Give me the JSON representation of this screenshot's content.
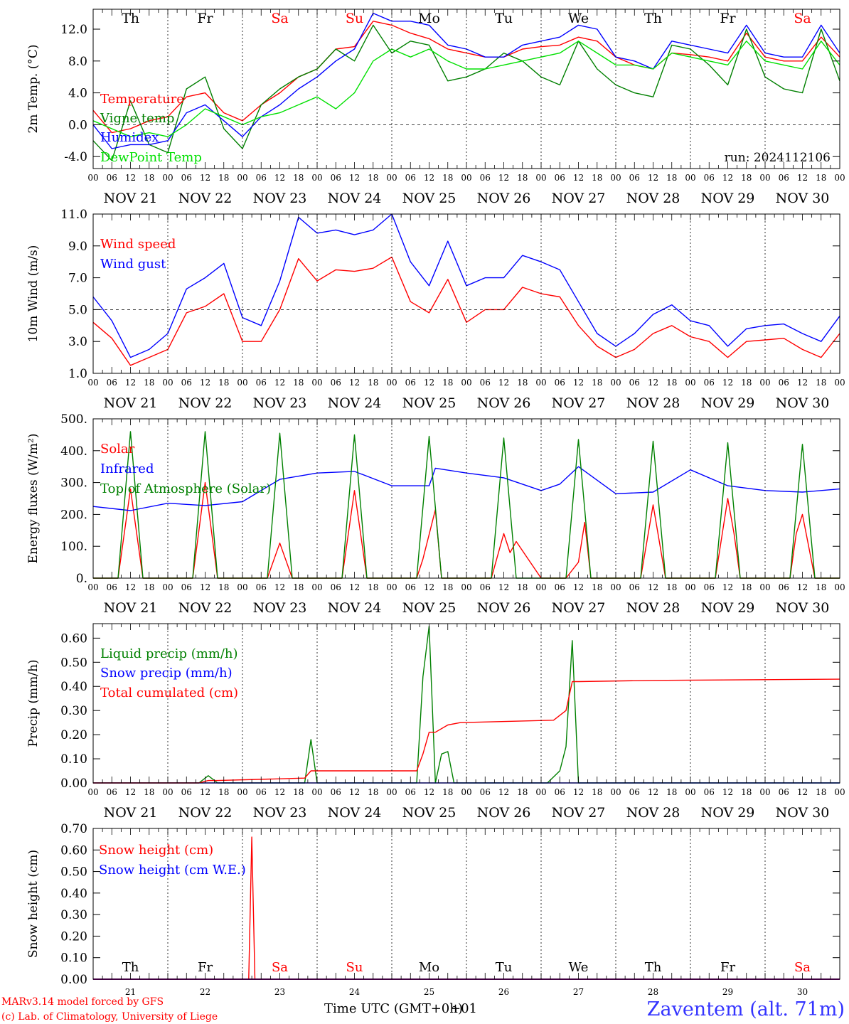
{
  "footer": {
    "model": "MARv3.14 model forced by GFS",
    "credit": "(c) Lab. of Climatology, University of Liege",
    "station": "Zaventem (alt. 71m)",
    "xlabel": "Time UTC (GMT+0h)",
    "xlabel_overlay": "+01"
  },
  "days": [
    "21",
    "22",
    "23",
    "24",
    "25",
    "26",
    "27",
    "28",
    "29",
    "30"
  ],
  "date_labels": [
    "NOV 21",
    "NOV 22",
    "NOV 23",
    "NOV 24",
    "NOV 25",
    "NOV 26",
    "NOV 27",
    "NOV 28",
    "NOV 29",
    "NOV 30"
  ],
  "weekdays": [
    {
      "label": "Th",
      "weekend": false
    },
    {
      "label": "Fr",
      "weekend": false
    },
    {
      "label": "Sa",
      "weekend": true
    },
    {
      "label": "Su",
      "weekend": true
    },
    {
      "label": "Mo",
      "weekend": false
    },
    {
      "label": "Tu",
      "weekend": false
    },
    {
      "label": "We",
      "weekend": false
    },
    {
      "label": "Th",
      "weekend": false
    },
    {
      "label": "Fr",
      "weekend": false
    },
    {
      "label": "Sa",
      "weekend": true
    }
  ],
  "hour_ticks": [
    "00",
    "06",
    "12",
    "18"
  ],
  "colors": {
    "red": "#ff0000",
    "darkgreen": "#008000",
    "blue": "#0000ff",
    "lightgreen": "#00e000",
    "purple": "#800080",
    "weekend": "#ff0000",
    "station": "#3333ff"
  },
  "chart_data": [
    {
      "type": "line",
      "ylabel": "2m Temp. (°C)",
      "ylim": [
        -5.5,
        14.5
      ],
      "yticks": [
        "-4.0",
        "0.0",
        "4.0",
        "8.0",
        "12.0"
      ],
      "ytick_values": [
        -4,
        0,
        4,
        8,
        12
      ],
      "dashed_reference": 0,
      "note": "run: 2024112106",
      "x_unit": "hours since Nov 21 00 UTC",
      "series": [
        {
          "name": "Temperature",
          "color": "#ff0000",
          "x": [
            0,
            6,
            12,
            18,
            24,
            30,
            36,
            42,
            48,
            54,
            60,
            66,
            72,
            78,
            84,
            90,
            96,
            102,
            108,
            114,
            120,
            126,
            132,
            138,
            144,
            150,
            156,
            162,
            168,
            174,
            180,
            186,
            192,
            198,
            204,
            210,
            216,
            222,
            228,
            234,
            240
          ],
          "y": [
            1.8,
            -1.0,
            -0.5,
            0.5,
            1.0,
            3.5,
            4.0,
            1.5,
            0.5,
            2.5,
            4.0,
            6.0,
            7.0,
            9.5,
            9.8,
            13.0,
            12.5,
            11.5,
            10.8,
            9.5,
            9.0,
            8.5,
            8.5,
            9.5,
            9.8,
            10.0,
            11.0,
            10.5,
            8.5,
            7.5,
            7.0,
            9.0,
            8.8,
            8.5,
            8.0,
            11.5,
            8.5,
            8.0,
            8.0,
            11.0,
            8.5
          ]
        },
        {
          "name": "Vigne temp",
          "color": "#008000",
          "x": [
            0,
            6,
            12,
            18,
            24,
            30,
            36,
            42,
            48,
            54,
            60,
            66,
            72,
            78,
            84,
            90,
            96,
            102,
            108,
            114,
            120,
            126,
            132,
            138,
            144,
            150,
            156,
            162,
            168,
            174,
            180,
            186,
            192,
            198,
            204,
            210,
            216,
            222,
            228,
            234,
            240
          ],
          "y": [
            -2.0,
            -4.5,
            3.0,
            -2.5,
            -3.5,
            4.5,
            6.0,
            -0.5,
            -3.0,
            2.5,
            4.5,
            6.0,
            7.0,
            9.5,
            8.0,
            12.5,
            9.0,
            10.5,
            10.0,
            5.5,
            6.0,
            7.0,
            9.0,
            8.0,
            6.0,
            5.0,
            10.5,
            7.0,
            5.0,
            4.0,
            3.5,
            10.0,
            9.5,
            7.5,
            5.0,
            12.0,
            6.0,
            4.5,
            4.0,
            12.0,
            5.5
          ]
        },
        {
          "name": "Humidex",
          "color": "#0000ff",
          "x": [
            0,
            6,
            12,
            18,
            24,
            30,
            36,
            42,
            48,
            54,
            60,
            66,
            72,
            78,
            84,
            90,
            96,
            102,
            108,
            114,
            120,
            126,
            132,
            138,
            144,
            150,
            156,
            162,
            168,
            174,
            180,
            186,
            192,
            198,
            204,
            210,
            216,
            222,
            228,
            234,
            240
          ],
          "y": [
            0.0,
            -3.0,
            -2.5,
            -2.5,
            -2.0,
            1.5,
            2.5,
            0.5,
            -1.5,
            1.0,
            2.5,
            4.5,
            6.0,
            8.0,
            9.5,
            14.0,
            13.0,
            13.0,
            12.5,
            10.0,
            9.5,
            8.5,
            8.5,
            10.0,
            10.5,
            11.0,
            12.5,
            12.0,
            8.5,
            8.0,
            7.0,
            10.5,
            10.0,
            9.5,
            9.0,
            12.5,
            9.0,
            8.5,
            8.5,
            12.5,
            9.0
          ]
        },
        {
          "name": "DewPoint Temp",
          "color": "#00e000",
          "x": [
            0,
            6,
            12,
            18,
            24,
            30,
            36,
            42,
            48,
            54,
            60,
            66,
            72,
            78,
            84,
            90,
            96,
            102,
            108,
            114,
            120,
            126,
            132,
            138,
            144,
            150,
            156,
            162,
            168,
            174,
            180,
            186,
            192,
            198,
            204,
            210,
            216,
            222,
            228,
            234,
            240
          ],
          "y": [
            0.5,
            -0.5,
            -1.5,
            -1.0,
            -1.5,
            0.0,
            2.0,
            1.0,
            0.0,
            1.0,
            1.5,
            2.5,
            3.5,
            2.0,
            4.0,
            8.0,
            9.5,
            8.5,
            9.5,
            8.0,
            7.0,
            7.0,
            7.5,
            8.0,
            8.5,
            9.0,
            10.5,
            9.0,
            7.5,
            7.5,
            7.0,
            9.0,
            8.5,
            8.0,
            7.5,
            10.5,
            8.0,
            7.5,
            7.0,
            10.5,
            7.5
          ]
        }
      ]
    },
    {
      "type": "line",
      "ylabel": "10m Wind (m/s)",
      "ylim": [
        1.0,
        11.0
      ],
      "yticks": [
        "1.0",
        "3.0",
        "5.0",
        "7.0",
        "9.0",
        "11.0"
      ],
      "ytick_values": [
        1,
        3,
        5,
        7,
        9,
        11
      ],
      "dashed_reference": 5,
      "x_unit": "hours since Nov 21 00 UTC",
      "series": [
        {
          "name": "Wind speed",
          "color": "#ff0000",
          "x": [
            0,
            6,
            12,
            18,
            24,
            30,
            36,
            42,
            48,
            54,
            60,
            66,
            72,
            78,
            84,
            90,
            96,
            102,
            108,
            114,
            120,
            126,
            132,
            138,
            144,
            150,
            156,
            162,
            168,
            174,
            180,
            186,
            192,
            198,
            204,
            210,
            216,
            222,
            228,
            234,
            240
          ],
          "y": [
            4.2,
            3.2,
            1.5,
            2.0,
            2.5,
            4.8,
            5.2,
            6.0,
            3.0,
            3.0,
            5.0,
            8.2,
            6.8,
            7.5,
            7.4,
            7.6,
            8.3,
            5.5,
            4.8,
            6.9,
            4.2,
            5.0,
            5.0,
            6.4,
            6.0,
            5.8,
            4.0,
            2.7,
            2.0,
            2.5,
            3.5,
            4.0,
            3.3,
            3.0,
            2.0,
            3.0,
            3.1,
            3.2,
            2.5,
            2.0,
            3.5
          ]
        },
        {
          "name": "Wind gust",
          "color": "#0000ff",
          "x": [
            0,
            6,
            12,
            18,
            24,
            30,
            36,
            42,
            48,
            54,
            60,
            66,
            72,
            78,
            84,
            90,
            96,
            102,
            108,
            114,
            120,
            126,
            132,
            138,
            144,
            150,
            156,
            162,
            168,
            174,
            180,
            186,
            192,
            198,
            204,
            210,
            216,
            222,
            228,
            234,
            240
          ],
          "y": [
            5.8,
            4.3,
            2.0,
            2.5,
            3.5,
            6.3,
            7.0,
            7.9,
            4.5,
            4.0,
            6.8,
            10.8,
            9.8,
            10.0,
            9.7,
            10.0,
            11.0,
            8.0,
            6.5,
            9.3,
            6.5,
            7.0,
            7.0,
            8.4,
            8.0,
            7.5,
            5.5,
            3.5,
            2.7,
            3.5,
            4.7,
            5.3,
            4.3,
            4.0,
            2.7,
            3.8,
            4.0,
            4.1,
            3.5,
            3.0,
            4.6
          ]
        }
      ]
    },
    {
      "type": "line",
      "ylabel": "Energy fluxes (W/m²)",
      "ylim": [
        0,
        500
      ],
      "yticks": [
        "0.",
        "100.",
        "200.",
        "300.",
        "400.",
        "500."
      ],
      "ytick_values": [
        0,
        100,
        200,
        300,
        400,
        500
      ],
      "x_unit": "hours since Nov 21 00 UTC",
      "series": [
        {
          "name": "Solar",
          "color": "#ff0000",
          "x": [
            0,
            8,
            12,
            16,
            24,
            32,
            36,
            40,
            48,
            56,
            60,
            64,
            72,
            80,
            84,
            88,
            96,
            104,
            106,
            110,
            112,
            120,
            128,
            132,
            134,
            136,
            144,
            152,
            156,
            158,
            160,
            168,
            176,
            180,
            184,
            192,
            200,
            204,
            206,
            208,
            216,
            224,
            226,
            228,
            232,
            240
          ],
          "y": [
            0,
            0,
            280,
            0,
            0,
            0,
            300,
            0,
            0,
            0,
            110,
            0,
            0,
            0,
            275,
            0,
            0,
            0,
            60,
            215,
            0,
            0,
            0,
            140,
            80,
            115,
            0,
            0,
            50,
            175,
            0,
            0,
            0,
            230,
            0,
            0,
            0,
            250,
            140,
            0,
            0,
            0,
            140,
            200,
            0,
            0
          ]
        },
        {
          "name": "Infrared",
          "color": "#0000ff",
          "x": [
            0,
            12,
            24,
            36,
            48,
            60,
            72,
            84,
            96,
            108,
            110,
            120,
            132,
            144,
            150,
            156,
            168,
            180,
            192,
            204,
            216,
            228,
            240
          ],
          "y": [
            225,
            212,
            235,
            228,
            240,
            310,
            330,
            335,
            290,
            290,
            345,
            330,
            315,
            275,
            295,
            350,
            265,
            270,
            340,
            290,
            275,
            270,
            280
          ]
        },
        {
          "name": "Top of Atmosphere (Solar)",
          "color": "#008000",
          "x": [
            0,
            8,
            12,
            16,
            24,
            32,
            36,
            40,
            48,
            56,
            60,
            64,
            72,
            80,
            84,
            88,
            96,
            104,
            108,
            112,
            120,
            128,
            132,
            136,
            144,
            152,
            156,
            160,
            168,
            176,
            180,
            184,
            192,
            200,
            204,
            208,
            216,
            224,
            228,
            232,
            240
          ],
          "y": [
            0,
            0,
            460,
            0,
            0,
            0,
            460,
            0,
            0,
            0,
            455,
            0,
            0,
            0,
            450,
            0,
            0,
            0,
            445,
            0,
            0,
            0,
            440,
            0,
            0,
            0,
            435,
            0,
            0,
            0,
            430,
            0,
            0,
            0,
            425,
            0,
            0,
            0,
            420,
            0,
            0
          ]
        }
      ]
    },
    {
      "type": "line",
      "ylabel": "Precip (mm/h)",
      "ylim": [
        0,
        0.66
      ],
      "yticks": [
        "0.00",
        "0.10",
        "0.20",
        "0.30",
        "0.40",
        "0.50",
        "0.60"
      ],
      "ytick_values": [
        0,
        0.1,
        0.2,
        0.3,
        0.4,
        0.5,
        0.6
      ],
      "x_unit": "hours since Nov 21 00 UTC",
      "series": [
        {
          "name": "Liquid precip (mm/h)",
          "color": "#008000",
          "x": [
            0,
            34,
            37,
            40,
            68,
            70,
            72,
            104,
            106,
            108,
            110,
            112,
            114,
            116,
            118,
            120,
            146,
            150,
            152,
            154,
            156,
            240
          ],
          "y": [
            0,
            0,
            0.03,
            0,
            0,
            0.18,
            0,
            0,
            0.44,
            0.65,
            0,
            0.12,
            0.13,
            0,
            0,
            0,
            0,
            0.05,
            0.15,
            0.59,
            0,
            0
          ]
        },
        {
          "name": "Snow precip (mm/h)",
          "color": "#0000ff",
          "x": [
            0,
            240
          ],
          "y": [
            0,
            0
          ]
        },
        {
          "name": "Total cumulated (cm)",
          "color": "#ff0000",
          "x": [
            0,
            34,
            37,
            40,
            68,
            70,
            72,
            104,
            106,
            108,
            110,
            114,
            118,
            148,
            152,
            154,
            156,
            180,
            240
          ],
          "y": [
            0,
            0,
            0.01,
            0.01,
            0.02,
            0.05,
            0.05,
            0.05,
            0.12,
            0.21,
            0.21,
            0.24,
            0.25,
            0.26,
            0.3,
            0.42,
            0.42,
            0.425,
            0.43
          ]
        }
      ]
    },
    {
      "type": "line",
      "ylabel": "Snow height (cm)",
      "ylim": [
        0,
        0.7
      ],
      "yticks": [
        "0.00",
        "0.10",
        "0.20",
        "0.30",
        "0.40",
        "0.50",
        "0.60",
        "0.70"
      ],
      "ytick_values": [
        0,
        0.1,
        0.2,
        0.3,
        0.4,
        0.5,
        0.6,
        0.7
      ],
      "x_unit": "hours since Nov 21 00 UTC",
      "series": [
        {
          "name": "Snow height (cm)",
          "color": "#ff0000",
          "x": [
            0,
            50,
            51,
            52,
            240
          ],
          "y": [
            0,
            0,
            0.66,
            0,
            0
          ]
        },
        {
          "name": "Snow height (cm W.E.)",
          "color": "#0000ff",
          "x": [
            0,
            240
          ],
          "y": [
            0,
            0
          ]
        }
      ]
    }
  ]
}
